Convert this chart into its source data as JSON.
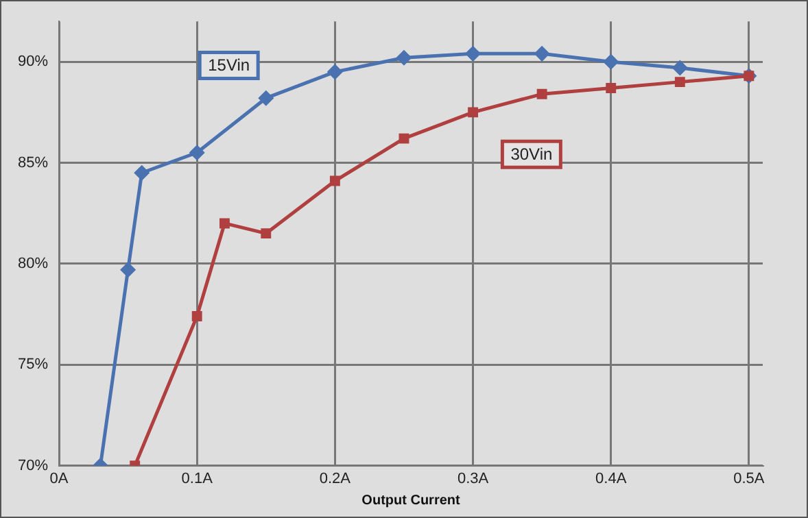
{
  "chart_data": {
    "type": "line",
    "xlabel": "Output Current",
    "xlim": [
      0,
      0.51
    ],
    "xticks": [
      {
        "value": 0,
        "label": "0A"
      },
      {
        "value": 0.1,
        "label": "0.1A"
      },
      {
        "value": 0.2,
        "label": "0.2A"
      },
      {
        "value": 0.3,
        "label": "0.3A"
      },
      {
        "value": 0.4,
        "label": "0.4A"
      },
      {
        "value": 0.5,
        "label": "0.5A"
      }
    ],
    "ylim": [
      70,
      92
    ],
    "yticks": [
      {
        "value": 70,
        "label": "70%"
      },
      {
        "value": 75,
        "label": "75%"
      },
      {
        "value": 80,
        "label": "80%"
      },
      {
        "value": 85,
        "label": "85%"
      },
      {
        "value": 90,
        "label": "90%"
      }
    ],
    "grid": true,
    "legend": false,
    "series": [
      {
        "name": "15Vin",
        "color": "#4a72b0",
        "marker": "diamond",
        "x": [
          0.03,
          0.05,
          0.06,
          0.1,
          0.15,
          0.2,
          0.25,
          0.3,
          0.35,
          0.4,
          0.45,
          0.5
        ],
        "values": [
          70,
          79.7,
          84.5,
          85.5,
          88.2,
          89.5,
          90.2,
          90.4,
          90.4,
          90.0,
          89.7,
          89.3
        ]
      },
      {
        "name": "30Vin",
        "color": "#b04040",
        "marker": "square",
        "x": [
          0.055,
          0.1,
          0.12,
          0.15,
          0.2,
          0.25,
          0.3,
          0.35,
          0.4,
          0.45,
          0.5
        ],
        "values": [
          70,
          77.4,
          82.0,
          81.5,
          84.1,
          86.2,
          87.5,
          88.4,
          88.7,
          89.0,
          89.3
        ]
      }
    ]
  }
}
